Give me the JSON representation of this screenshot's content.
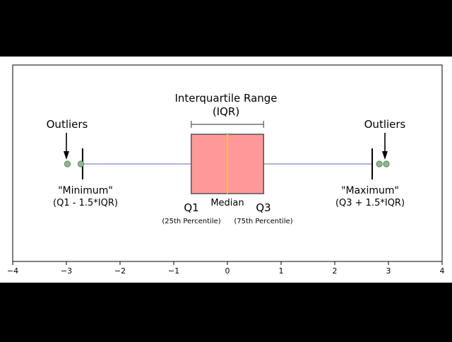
{
  "colors": {
    "letterbox": "#000000",
    "canvas": "#ffffff",
    "box_fill": "#ff9999",
    "box_edge": "#555555",
    "median": "#ffcc00",
    "whisker": "#9999cc",
    "outlier": "#88bb88",
    "annotation": "#000000"
  },
  "chart_data": {
    "type": "box",
    "xlim": [
      -4,
      4
    ],
    "xticks": [
      -4,
      -3,
      -2,
      -1,
      0,
      1,
      2,
      3,
      4
    ],
    "xtick_labels": [
      "−4",
      "−3",
      "−2",
      "−1",
      "0",
      "1",
      "2",
      "3",
      "4"
    ],
    "grid": false,
    "box": {
      "q1": -0.674,
      "median": 0,
      "q3": 0.674,
      "whisker_low": -2.698,
      "whisker_high": 2.698,
      "outliers": [
        -2.98,
        -2.73,
        2.83,
        2.96
      ]
    },
    "annotations": {
      "iqr_title": "Interquartile Range",
      "iqr_sub": "(IQR)",
      "outliers_left": "Outliers",
      "outliers_right": "Outliers",
      "minimum_title": "\"Minimum\"",
      "minimum_formula": "(Q1 - 1.5*IQR)",
      "maximum_title": "\"Maximum\"",
      "maximum_formula": "(Q3 + 1.5*IQR)",
      "median": "Median",
      "q1": "Q1",
      "q1_sub": "(25th Percentile)",
      "q3": "Q3",
      "q3_sub": "(75th Percentile)"
    }
  }
}
